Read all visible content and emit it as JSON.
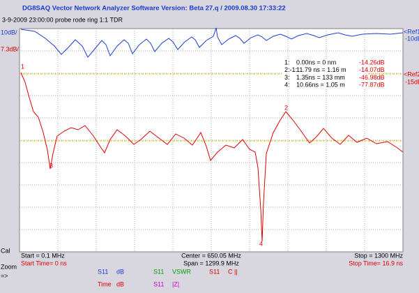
{
  "header": {
    "title": "DG8SAQ Vector Network Analyzer Software   Version:  Beta 27.q / 2009.08.30 17:33:22",
    "subtitle": "3-9-2009   23:00:00     probe rode ring 1:1 TDR"
  },
  "plot": {
    "scale_1": "10dB/",
    "scale_2": "7.3dB/",
    "ref1": {
      "label": "<Ref1",
      "value": "-10dB"
    },
    "ref2": {
      "label": "<Ref2",
      "value": "-15dB"
    },
    "marker_labels": [
      "1",
      "2",
      "3",
      "4"
    ],
    "markers": [
      [
        "1:",
        "0.00ns = 0 nm",
        "-14.26dB"
      ],
      [
        "2:-1:",
        "11.79 ns = 1.16 m",
        "-14.07dB"
      ],
      [
        "3:",
        "1.35ns = 133 mm",
        "-46.98dB"
      ],
      [
        "4:",
        "10.66ns = 1.05 m",
        "-77.87dB"
      ]
    ]
  },
  "footer": {
    "cal": "Cal",
    "start": "Start = 0.1 MHz",
    "start_time": "Start Time= 0 ns",
    "center": "Center = 650.05 MHz",
    "span": "Span = 1299.9 MHz",
    "stop": "Stop = 1300 MHz",
    "stop_time": "Stop Time= 16.9 ns",
    "zoom": "Zoom",
    "arrow": "=>",
    "legend": [
      [
        "S11",
        "dB"
      ],
      [
        "S11",
        "VSWR"
      ],
      [
        "S11",
        "C ||"
      ],
      [
        "Time",
        "dB"
      ],
      [
        "S11",
        "|Z|"
      ]
    ]
  }
}
